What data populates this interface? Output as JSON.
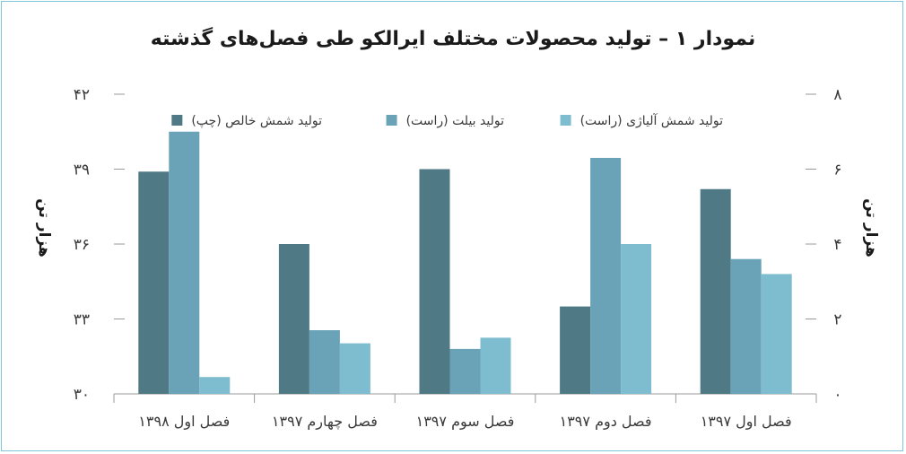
{
  "chart_data": {
    "type": "bar",
    "title": "نمودار ۱ – تولید محصولات مختلف ایرالکو طی فصل‌های گذشته",
    "ylabel_left": "هزار تن",
    "ylabel_right": "هزار تن",
    "categories": [
      "فصل اول ۱۳۹۷",
      "فصل دوم ۱۳۹۷",
      "فصل سوم ۱۳۹۷",
      "فصل چهارم ۱۳۹۷",
      "فصل اول ۱۳۹۸"
    ],
    "ylim_left": [
      30,
      42
    ],
    "ylim_right": [
      0,
      8
    ],
    "yticks_left": [
      {
        "value": 30,
        "label": "۳۰"
      },
      {
        "value": 33,
        "label": "۳۳"
      },
      {
        "value": 36,
        "label": "۳۶"
      },
      {
        "value": 39,
        "label": "۳۹"
      },
      {
        "value": 42,
        "label": "۴۲"
      }
    ],
    "yticks_right": [
      {
        "value": 0,
        "label": "۰"
      },
      {
        "value": 2,
        "label": "۲"
      },
      {
        "value": 4,
        "label": "۴"
      },
      {
        "value": 6,
        "label": "۶"
      },
      {
        "value": 8,
        "label": "۸"
      }
    ],
    "series": [
      {
        "name": "تولید شمش خالص (چپ)",
        "axis": "left",
        "color": "#4f7985",
        "values": [
          38.2,
          33.5,
          39.0,
          36.0,
          38.9
        ]
      },
      {
        "name": "تولید بیلت (راست)",
        "axis": "right",
        "color": "#6aa3b8",
        "values": [
          3.6,
          6.3,
          1.2,
          1.7,
          7.0
        ]
      },
      {
        "name": "تولید شمش آلیاژی (راست)",
        "axis": "right",
        "color": "#7ebdd0",
        "values": [
          3.2,
          4.0,
          1.5,
          1.35,
          0.45
        ]
      }
    ],
    "legend_position": "top",
    "grid": false
  }
}
